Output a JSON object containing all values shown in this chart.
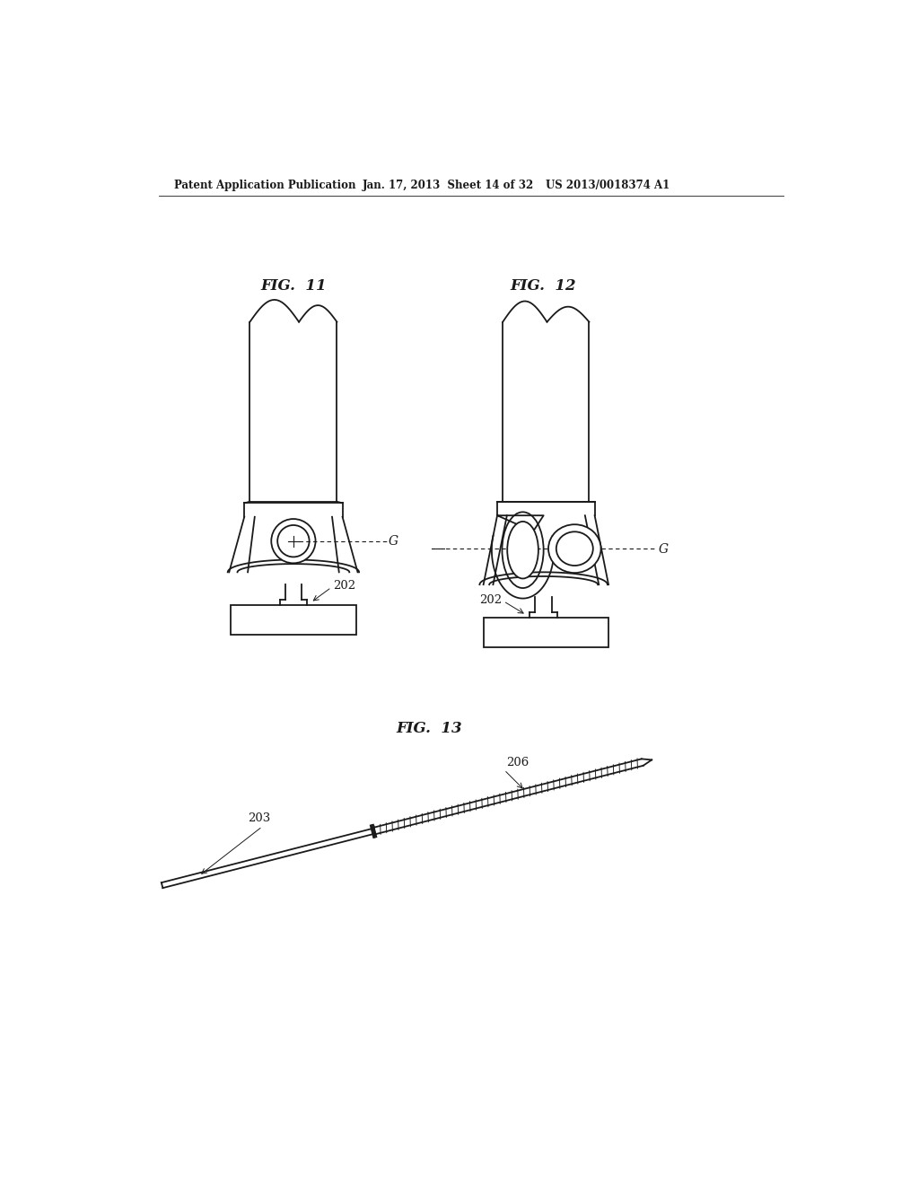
{
  "bg_color": "#ffffff",
  "header_text": "Patent Application Publication",
  "header_date": "Jan. 17, 2013  Sheet 14 of 32",
  "header_patent": "US 2013/0018374 A1",
  "fig11_label": "FIG.  11",
  "fig12_label": "FIG.  12",
  "fig13_label": "FIG.  13",
  "label_G": "G",
  "label_202_fig11": "202",
  "label_202_fig12": "202",
  "label_203": "203",
  "label_206": "206",
  "line_color": "#1a1a1a",
  "line_width": 1.3
}
